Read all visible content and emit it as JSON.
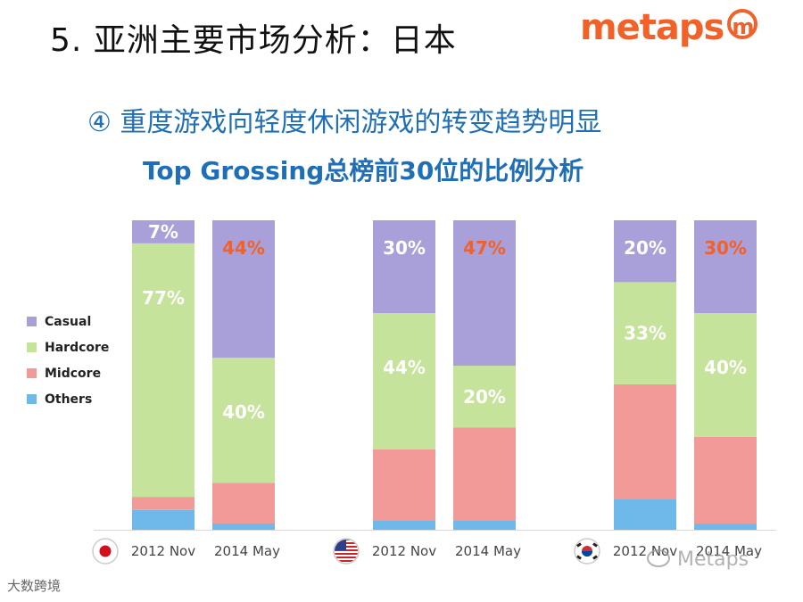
{
  "header": {
    "title": "5. 亚洲主要市场分析：日本",
    "logo_text": "metaps",
    "logo_mark": "m"
  },
  "subtitle": {
    "line1": "④ 重度游戏向轻度休闲游戏的转变趋势明显",
    "line2": "Top Grossing总榜前30位的比例分析"
  },
  "watermark": {
    "left_text": "大数跨境",
    "right_text": "Metaps"
  },
  "colors": {
    "Casual": "#a99fd9",
    "Hardcore": "#c5e39a",
    "Midcore": "#f29a98",
    "Others": "#6fb8ea",
    "accent": "#f0622a",
    "title_blue": "#1f6fb6",
    "label_white": "#ffffff"
  },
  "chart_data": {
    "type": "bar",
    "stacked": true,
    "percent": true,
    "legend": [
      "Casual",
      "Hardcore",
      "Midcore",
      "Others"
    ],
    "legend_position": "left",
    "groups": [
      {
        "country": "Japan",
        "flag": "japan-flag-icon",
        "bars": [
          {
            "category": "2012 Nov",
            "values": {
              "Others": 6,
              "Midcore": 4,
              "Hardcore": 77,
              "Casual": 7
            },
            "labels": {
              "Casual": "7%",
              "Hardcore": "77%"
            },
            "highlight": []
          },
          {
            "category": "2014 May",
            "values": {
              "Others": 2,
              "Midcore": 13,
              "Hardcore": 40,
              "Casual": 44
            },
            "labels": {
              "Casual": "44%",
              "Hardcore": "40%"
            },
            "highlight": [
              "Casual"
            ]
          }
        ]
      },
      {
        "country": "United States",
        "flag": "usa-flag-icon",
        "bars": [
          {
            "category": "2012 Nov",
            "values": {
              "Others": 3,
              "Midcore": 23,
              "Hardcore": 44,
              "Casual": 30
            },
            "labels": {
              "Casual": "30%",
              "Hardcore": "44%"
            },
            "highlight": []
          },
          {
            "category": "2014 May",
            "values": {
              "Others": 3,
              "Midcore": 30,
              "Hardcore": 20,
              "Casual": 47
            },
            "labels": {
              "Casual": "47%",
              "Hardcore": "20%"
            },
            "highlight": [
              "Casual"
            ]
          }
        ]
      },
      {
        "country": "South Korea",
        "flag": "korea-flag-icon",
        "bars": [
          {
            "category": "2012 Nov",
            "values": {
              "Others": 10,
              "Midcore": 37,
              "Hardcore": 33,
              "Casual": 20
            },
            "labels": {
              "Casual": "20%",
              "Hardcore": "33%"
            },
            "highlight": []
          },
          {
            "category": "2014 May",
            "values": {
              "Others": 2,
              "Midcore": 28,
              "Hardcore": 40,
              "Casual": 30
            },
            "labels": {
              "Casual": "30%",
              "Hardcore": "40%"
            },
            "highlight": [
              "Casual"
            ]
          }
        ]
      }
    ]
  }
}
